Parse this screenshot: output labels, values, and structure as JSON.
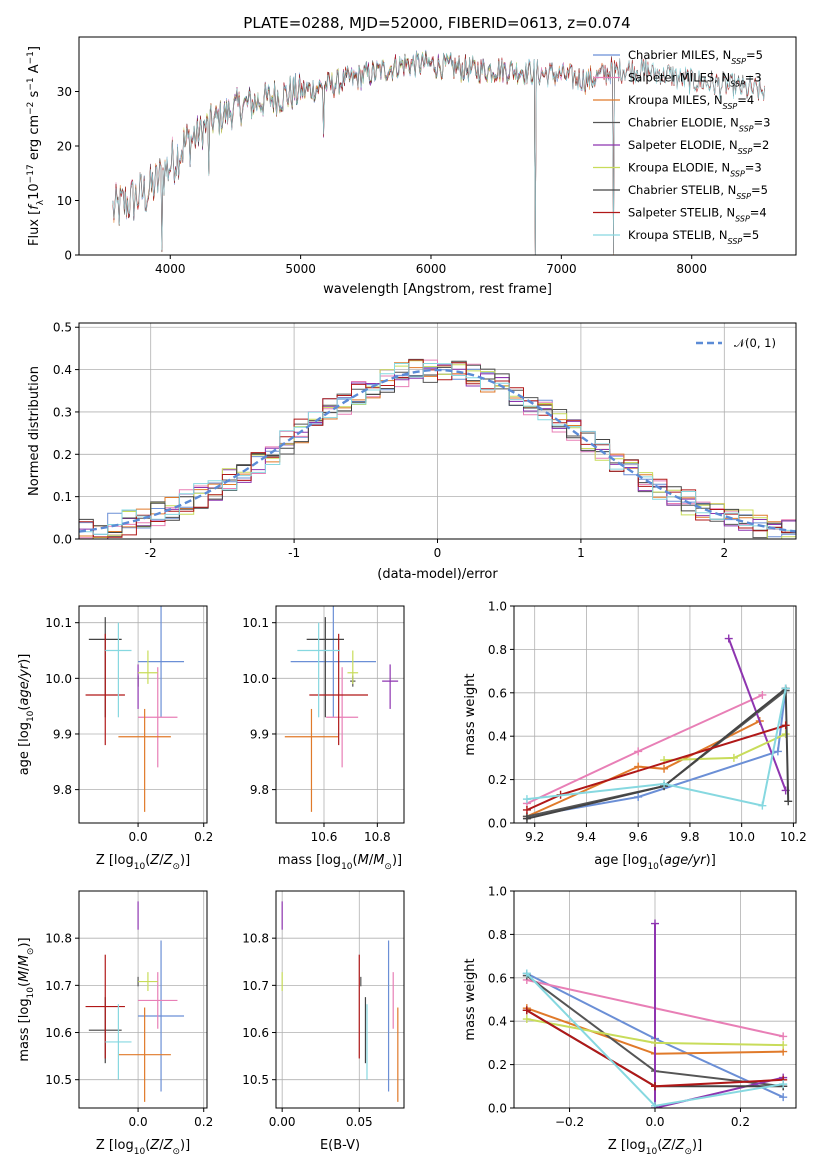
{
  "title": "PLATE=0288, MJD=52000, FIBERID=0613, z=0.074",
  "colors": {
    "Chabrier MILES": "#6b8fd6",
    "Salpeter MILES": "#e87fb6",
    "Kroupa MILES": "#e07a2a",
    "Chabrier ELODIE": "#555555",
    "Salpeter ELODIE": "#8e35b0",
    "Kroupa ELODIE": "#c8dc5a",
    "Chabrier STELIB": "#444444",
    "Salpeter STELIB": "#b01818",
    "Kroupa STELIB": "#86d8e0"
  },
  "chart_data": [
    {
      "id": "spectrum",
      "type": "line",
      "xlabel": "wavelength [Angstrom, rest frame]",
      "ylabel": "Flux [f_λ10^-17 erg cm^-2 s^-1 A^-1]",
      "xlim": [
        3300,
        8800
      ],
      "ylim": [
        0,
        40
      ],
      "xticks": [
        4000,
        5000,
        6000,
        7000,
        8000
      ],
      "yticks": [
        0,
        10,
        20,
        30
      ],
      "grid": false,
      "legend_position": "top-right",
      "legend": [
        {
          "base": "Chabrier MILES, N",
          "sub": "SSP",
          "tail": "=5"
        },
        {
          "base": "Salpeter MILES, N",
          "sub": "SSP",
          "tail": "=3"
        },
        {
          "base": "Kroupa MILES, N",
          "sub": "SSP",
          "tail": "=4"
        },
        {
          "base": "Chabrier ELODIE, N",
          "sub": "SSP",
          "tail": "=3"
        },
        {
          "base": "Salpeter ELODIE, N",
          "sub": "SSP",
          "tail": "=2"
        },
        {
          "base": "Kroupa ELODIE, N",
          "sub": "SSP",
          "tail": "=3"
        },
        {
          "base": "Chabrier STELIB, N",
          "sub": "SSP",
          "tail": "=5"
        },
        {
          "base": "Salpeter STELIB, N",
          "sub": "SSP",
          "tail": "=4"
        },
        {
          "base": "Kroupa STELIB, N",
          "sub": "SSP",
          "tail": "=5"
        }
      ],
      "continuum": [
        [
          3560,
          8
        ],
        [
          3700,
          10
        ],
        [
          3850,
          12
        ],
        [
          3950,
          15
        ],
        [
          4100,
          20
        ],
        [
          4300,
          24
        ],
        [
          4500,
          27
        ],
        [
          4800,
          29
        ],
        [
          5000,
          30
        ],
        [
          5200,
          31
        ],
        [
          5500,
          33
        ],
        [
          5800,
          35
        ],
        [
          6000,
          35
        ],
        [
          6300,
          34
        ],
        [
          6600,
          34
        ],
        [
          7000,
          33
        ],
        [
          7200,
          32
        ],
        [
          7400,
          34
        ],
        [
          7600,
          34
        ],
        [
          7800,
          33
        ],
        [
          8000,
          32
        ],
        [
          8300,
          31
        ],
        [
          8550,
          30
        ]
      ],
      "features": [
        {
          "x": 3933,
          "y": 1
        },
        {
          "x": 4300,
          "y": 15
        },
        {
          "x": 5175,
          "y": 22
        },
        {
          "x": 6800,
          "y": 0
        },
        {
          "x": 7400,
          "y": 0
        }
      ]
    },
    {
      "id": "residuals",
      "type": "histogram",
      "xlabel": "(data-model)/error",
      "ylabel": "Normed distribution",
      "xlim": [
        -2.5,
        2.5
      ],
      "ylim": [
        0,
        0.51
      ],
      "xticks": [
        -2,
        -1,
        0,
        1,
        2
      ],
      "yticks": [
        0.0,
        0.1,
        0.2,
        0.3,
        0.4,
        0.5
      ],
      "grid": true,
      "legend_position": "top-right",
      "legend": [
        {
          "label": "𝒩(0, 1)",
          "style": "dashed"
        }
      ],
      "bin_width": 0.1,
      "reference_curve": "normal(0,1)"
    },
    {
      "id": "age-vs-Z",
      "type": "scatter",
      "xlabel": "Z [log10(Z/Z⊙)]",
      "ylabel": "age  [log10(age/yr)]",
      "xlim": [
        -0.18,
        0.21
      ],
      "ylim": [
        9.74,
        10.13
      ],
      "xticks": [
        0.0,
        0.2
      ],
      "yticks": [
        9.8,
        9.9,
        10.0,
        10.1
      ],
      "grid": true
    },
    {
      "id": "age-vs-mass",
      "type": "scatter",
      "xlabel": "mass [log10(M/M⊙)]",
      "ylabel": "",
      "xlim": [
        10.42,
        10.9
      ],
      "ylim": [
        9.74,
        10.13
      ],
      "xticks": [
        10.6,
        10.8
      ],
      "yticks": [
        9.8,
        9.9,
        10.0,
        10.1
      ],
      "grid": true
    },
    {
      "id": "weight-vs-age",
      "type": "line",
      "xlabel": "age  [log10(age/yr)]",
      "ylabel": "mass weight",
      "xlim": [
        9.12,
        10.21
      ],
      "ylim": [
        0,
        1
      ],
      "xticks": [
        9.2,
        9.4,
        9.6,
        9.8,
        10.0,
        10.2
      ],
      "yticks": [
        0.0,
        0.2,
        0.4,
        0.6,
        0.8,
        1.0
      ],
      "grid": true
    },
    {
      "id": "mass-vs-Z",
      "type": "scatter",
      "xlabel": "Z [log10(Z/Z⊙)]",
      "ylabel": "mass [log10(M/M⊙)]",
      "xlim": [
        -0.18,
        0.21
      ],
      "ylim": [
        10.44,
        10.9
      ],
      "xticks": [
        0.0,
        0.2
      ],
      "yticks": [
        10.5,
        10.6,
        10.7,
        10.8
      ],
      "grid": true
    },
    {
      "id": "mass-vs-EBV",
      "type": "scatter",
      "xlabel": "E(B-V)",
      "ylabel": "",
      "xlim": [
        -0.004,
        0.079
      ],
      "ylim": [
        10.44,
        10.9
      ],
      "xticks": [
        0.0,
        0.05
      ],
      "yticks": [
        10.5,
        10.6,
        10.7,
        10.8
      ],
      "grid": true
    },
    {
      "id": "weight-vs-Z",
      "type": "line",
      "xlabel": "Z [log10(Z/Z⊙)]",
      "ylabel": "mass weight",
      "xlim": [
        -0.33,
        0.33
      ],
      "ylim": [
        0,
        1
      ],
      "xticks": [
        -0.2,
        0.0,
        0.2
      ],
      "yticks": [
        0.0,
        0.2,
        0.4,
        0.6,
        0.8,
        1.0
      ],
      "grid": true
    }
  ],
  "models": [
    {
      "name": "Chabrier MILES",
      "Z": 0.07,
      "Zerr": 0.07,
      "age": 10.03,
      "ageerr": [
        0.1,
        0.1
      ],
      "mass": 10.635,
      "masserr": 0.16,
      "ebv": 0.069,
      "ebverr": 0.08,
      "ages": [
        9.17,
        9.6,
        10.14,
        10.17
      ],
      "w_age": [
        0.03,
        0.12,
        0.33,
        0.62
      ],
      "Zs": [
        -0.3,
        0.0,
        0.3
      ],
      "w_Z": [
        0.62,
        0.32,
        0.05
      ]
    },
    {
      "name": "Salpeter MILES",
      "Z": 0.06,
      "Zerr": 0.06,
      "age": 9.93,
      "ageerr": [
        0.09,
        0.09
      ],
      "mass": 10.668,
      "masserr": 0.06,
      "ebv": 0.072,
      "ebverr": 0.06,
      "ages": [
        9.17,
        9.6,
        10.08
      ],
      "w_age": [
        0.09,
        0.33,
        0.59
      ],
      "Zs": [
        -0.3,
        0.3
      ],
      "w_Z": [
        0.59,
        0.33
      ]
    },
    {
      "name": "Kroupa MILES",
      "Z": 0.02,
      "Zerr": 0.08,
      "age": 9.895,
      "ageerr": [
        0.135,
        0.05
      ],
      "mass": 10.553,
      "masserr": 0.1,
      "ebv": 0.075,
      "ebverr": 0.07,
      "ages": [
        9.17,
        9.6,
        9.7,
        10.07
      ],
      "w_age": [
        0.03,
        0.26,
        0.25,
        0.47
      ],
      "Zs": [
        -0.3,
        0.0,
        0.3
      ],
      "w_Z": [
        0.46,
        0.25,
        0.26
      ]
    },
    {
      "name": "Chabrier ELODIE",
      "Z": 0.0,
      "Zerr": 0.0,
      "age": 9.995,
      "ageerr": [
        0.01,
        0.01
      ],
      "mass": 10.708,
      "masserr": 0.01,
      "ebv": 0.051,
      "ebverr": 0.01,
      "ages": [
        9.17,
        9.7,
        10.17
      ],
      "w_age": [
        0.03,
        0.17,
        0.61
      ],
      "Zs": [
        -0.3,
        0.0,
        0.3
      ],
      "w_Z": [
        0.61,
        0.17,
        0.1
      ]
    },
    {
      "name": "Salpeter ELODIE",
      "Z": 0.0,
      "Zerr": 0.0,
      "age": 9.995,
      "ageerr": [
        0.05,
        0.03
      ],
      "mass": 10.848,
      "masserr": 0.03,
      "ebv": 0.0,
      "ebverr": 0.0,
      "ages": [
        9.95,
        10.17
      ],
      "w_age": [
        0.85,
        0.15
      ],
      "Zs": [
        0.0,
        0.0,
        0.3
      ],
      "w_Z": [
        0.85,
        0.0,
        0.14
      ]
    },
    {
      "name": "Kroupa ELODIE",
      "Z": 0.03,
      "Zerr": 0.03,
      "age": 10.01,
      "ageerr": [
        0.02,
        0.04
      ],
      "mass": 10.708,
      "masserr": 0.02,
      "ebv": 0.0,
      "ebverr": 0.0,
      "ages": [
        9.7,
        9.97,
        10.17
      ],
      "w_age": [
        0.29,
        0.3,
        0.41
      ],
      "Zs": [
        -0.3,
        0.0,
        0.3
      ],
      "w_Z": [
        0.41,
        0.3,
        0.29
      ]
    },
    {
      "name": "Chabrier STELIB",
      "Z": -0.1,
      "Zerr": 0.05,
      "age": 10.07,
      "ageerr": [
        0.14,
        0.04
      ],
      "mass": 10.605,
      "masserr": 0.07,
      "ebv": 0.054,
      "ebverr": 0.02,
      "ages": [
        9.17,
        9.7,
        10.17,
        10.18
      ],
      "w_age": [
        0.02,
        0.17,
        0.62,
        0.1
      ],
      "Zs": [
        -0.3,
        0.0,
        0.3
      ],
      "w_Z": [
        0.45,
        0.1,
        0.1
      ]
    },
    {
      "name": "Salpeter STELIB",
      "Z": -0.1,
      "Zerr": 0.06,
      "age": 9.97,
      "ageerr": [
        0.09,
        0.11
      ],
      "mass": 10.655,
      "masserr": 0.11,
      "ebv": 0.05,
      "ebverr": 0.03,
      "ages": [
        9.17,
        9.3,
        10.17
      ],
      "w_age": [
        0.06,
        0.13,
        0.45
      ],
      "Zs": [
        -0.3,
        0.0,
        0.3
      ],
      "w_Z": [
        0.45,
        0.1,
        0.13
      ]
    },
    {
      "name": "Kroupa STELIB",
      "Z": -0.06,
      "Zerr": 0.04,
      "age": 10.05,
      "ageerr": [
        0.12,
        0.05
      ],
      "mass": 10.58,
      "masserr": 0.08,
      "ebv": 0.055,
      "ebverr": 0.03,
      "ages": [
        9.17,
        9.7,
        10.08,
        10.17
      ],
      "w_age": [
        0.11,
        0.18,
        0.08,
        0.62
      ],
      "Zs": [
        -0.3,
        0.0,
        0.3
      ],
      "w_Z": [
        0.62,
        0.01,
        0.11
      ]
    }
  ]
}
